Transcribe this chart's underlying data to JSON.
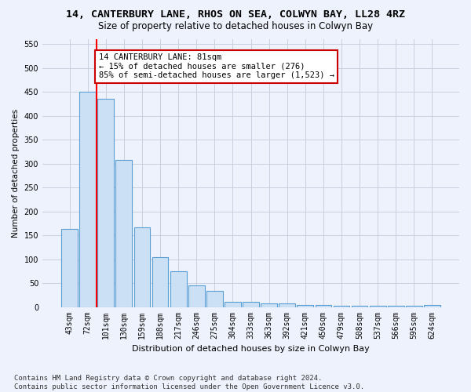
{
  "title": "14, CANTERBURY LANE, RHOS ON SEA, COLWYN BAY, LL28 4RZ",
  "subtitle": "Size of property relative to detached houses in Colwyn Bay",
  "xlabel": "Distribution of detached houses by size in Colwyn Bay",
  "ylabel": "Number of detached properties",
  "categories": [
    "43sqm",
    "72sqm",
    "101sqm",
    "130sqm",
    "159sqm",
    "188sqm",
    "217sqm",
    "246sqm",
    "275sqm",
    "304sqm",
    "333sqm",
    "363sqm",
    "392sqm",
    "421sqm",
    "450sqm",
    "479sqm",
    "508sqm",
    "537sqm",
    "566sqm",
    "595sqm",
    "624sqm"
  ],
  "values": [
    163,
    450,
    435,
    307,
    167,
    105,
    74,
    45,
    33,
    10,
    10,
    8,
    8,
    5,
    5,
    3,
    3,
    3,
    2,
    2,
    5
  ],
  "bar_color": "#cce0f5",
  "bar_edge_color": "#5a9fd4",
  "bar_edge_width": 0.8,
  "red_line_x": 1.5,
  "annotation_text": "14 CANTERBURY LANE: 81sqm\n← 15% of detached houses are smaller (276)\n85% of semi-detached houses are larger (1,523) →",
  "annotation_box_color": "#ffffff",
  "annotation_box_edge": "#cc0000",
  "ylim": [
    0,
    560
  ],
  "yticks": [
    0,
    50,
    100,
    150,
    200,
    250,
    300,
    350,
    400,
    450,
    500,
    550
  ],
  "grid_color": "#c8d0e0",
  "bg_color": "#eef2fc",
  "footnote": "Contains HM Land Registry data © Crown copyright and database right 2024.\nContains public sector information licensed under the Open Government Licence v3.0.",
  "title_fontsize": 9.5,
  "subtitle_fontsize": 8.5,
  "xlabel_fontsize": 8,
  "ylabel_fontsize": 7.5,
  "tick_fontsize": 7,
  "annot_fontsize": 7.5,
  "footnote_fontsize": 6.5
}
